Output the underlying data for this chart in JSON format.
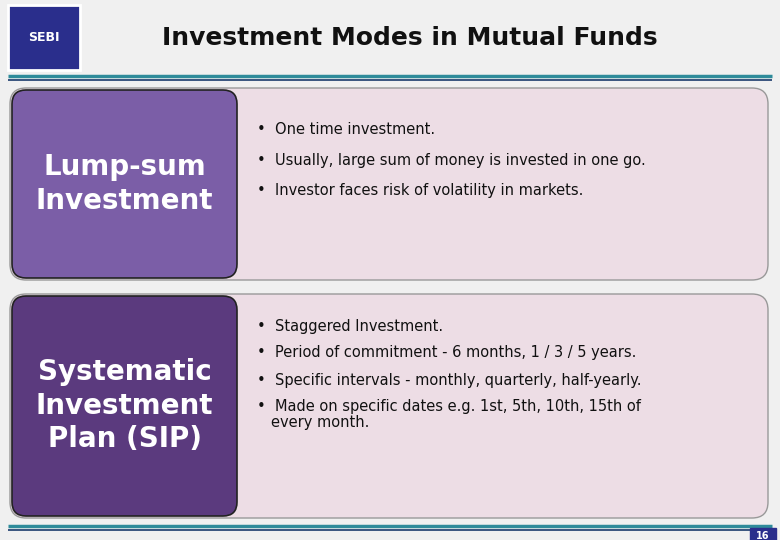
{
  "title": "Investment Modes in Mutual Funds",
  "title_fontsize": 18,
  "background_color": "#f0f0f0",
  "header_line_color1": "#2e8b9a",
  "header_line_color2": "#1a3a6b",
  "slide_number": "16",
  "box1_label": "Lump-sum\nInvestment",
  "box1_bg": "#7b5ea7",
  "box1_text_color": "#ffffff",
  "box1_detail_bg": "#eddde5",
  "box1_bullets": [
    "One time investment.",
    "Usually, large sum of money is invested in one go.",
    "Investor faces risk of volatility in markets."
  ],
  "box2_label": "Systematic\nInvestment\nPlan (SIP)",
  "box2_bg": "#5b3a7e",
  "box2_text_color": "#ffffff",
  "box2_detail_bg": "#eddde5",
  "box2_bullets": [
    "Staggered Investment.",
    "Period of commitment - 6 months, 1 / 3 / 5 years.",
    "Specific intervals - monthly, quarterly, half-yearly.",
    "Made on specific dates e.g. 1st, 5th, 10th, 15th of every month."
  ],
  "bullet_char": "•",
  "bullet_fontsize": 10.5,
  "label_fontsize": 20,
  "logo_bg": "#2a2e8c",
  "logo_border": "#ffffff"
}
